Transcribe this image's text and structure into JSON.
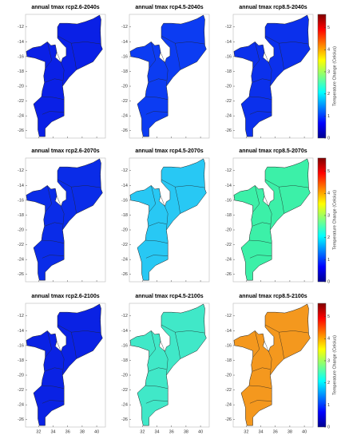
{
  "maps": {
    "panels": [
      {
        "title": "annual tmax rcp2.6-2040s",
        "color": "#0a20e6"
      },
      {
        "title": "annual tmax rcp4.5-2040s",
        "color": "#0c3cf2"
      },
      {
        "title": "annual tmax rcp8.5-2040s",
        "color": "#0b30ec"
      },
      {
        "title": "annual tmax rcp2.6-2070s",
        "color": "#0a2ce8"
      },
      {
        "title": "annual tmax rcp4.5-2070s",
        "color": "#28c8f4"
      },
      {
        "title": "annual tmax rcp8.5-2070s",
        "color": "#3cf0a8"
      },
      {
        "title": "annual tmax rcp2.6-2100s",
        "color": "#0a22e4"
      },
      {
        "title": "annual tmax rcp4.5-2100s",
        "color": "#40e8c8"
      },
      {
        "title": "annual tmax rcp8.5-2100s",
        "color": "#f4981e"
      }
    ],
    "xlim": [
      30.2,
      41.2
    ],
    "ylim": [
      -27,
      -10.3
    ],
    "xticks": [
      32,
      34,
      36,
      38,
      40
    ],
    "yticks": [
      -12,
      -14,
      -16,
      -18,
      -20,
      -22,
      -24,
      -26
    ],
    "colorbar": {
      "label": "Temperature Change (Celcius)",
      "lim": [
        0,
        5.6
      ],
      "ticks": [
        0,
        1,
        2,
        3,
        4,
        5
      ]
    }
  }
}
